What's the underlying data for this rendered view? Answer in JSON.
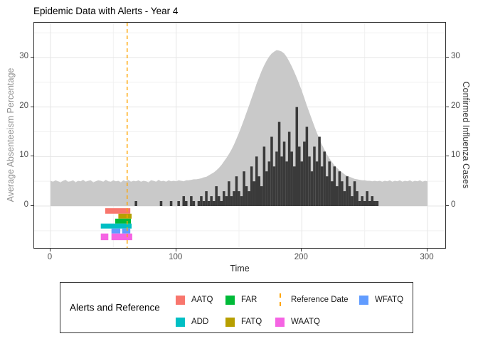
{
  "title": "Epidemic Data with Alerts - Year 4",
  "axes": {
    "x_title": "Time",
    "y_left_title": "Average Absenteeism Percentage",
    "y_right_title": "Confirmed Influenza Cases"
  },
  "legend": {
    "title": "Alerts and Reference",
    "items": [
      {
        "label": "AATQ",
        "key": "square",
        "color": "#F8766D",
        "col": 0,
        "row": 0
      },
      {
        "label": "ADD",
        "key": "square",
        "color": "#00BFC4",
        "col": 0,
        "row": 1
      },
      {
        "label": "FAR",
        "key": "square",
        "color": "#00BA38",
        "col": 1,
        "row": 0
      },
      {
        "label": "FATQ",
        "key": "square",
        "color": "#B79F00",
        "col": 1,
        "row": 1
      },
      {
        "label": "Reference Date",
        "key": "dashed-line",
        "color": "#FFA500",
        "col": 2,
        "row": 0
      },
      {
        "label": "WAATQ",
        "key": "square",
        "color": "#F564E3",
        "col": 2,
        "row": 1
      },
      {
        "label": "WFATQ",
        "key": "square",
        "color": "#619CFF",
        "col": 3,
        "row": 0
      }
    ]
  },
  "chart_data": {
    "type": "combo-area-bar-tile",
    "title": "Epidemic Data with Alerts - Year 4",
    "xlabel": "Time",
    "ylabel_left": "Average Absenteeism Percentage",
    "ylabel_right": "Confirmed Influenza Cases",
    "x_range": [
      0,
      300
    ],
    "y_range_shown": [
      -8.7,
      37
    ],
    "x_ticks": [
      0,
      100,
      200,
      300
    ],
    "x_minor": [
      50,
      150,
      250
    ],
    "y_ticks": [
      0,
      10,
      20,
      30
    ],
    "y_minor": [
      -5,
      5,
      15,
      25,
      35
    ],
    "grid": "on",
    "legend_position": "bottom",
    "x_step": 2,
    "absenteeism": {
      "name": "Average Absenteeism Percentage",
      "style": "area",
      "color": "#C9C9C9",
      "baseline": 5,
      "peak_x": 181,
      "peak_value": 31.5,
      "values": [
        5.1,
        4.9,
        5.2,
        5.0,
        4.8,
        5.1,
        5.3,
        4.9,
        5.0,
        5.2,
        4.8,
        5.1,
        5.0,
        5.3,
        4.9,
        5.1,
        5.2,
        4.8,
        5.0,
        5.2,
        5.1,
        4.9,
        5.3,
        5.0,
        4.9,
        5.2,
        5.0,
        5.1,
        4.8,
        5.2,
        5.0,
        5.3,
        4.9,
        5.1,
        5.0,
        5.2,
        4.9,
        5.1,
        5.0,
        4.8,
        5.2,
        5.1,
        4.9,
        5.3,
        5.0,
        5.1,
        4.9,
        5.2,
        5.0,
        5.1,
        5.0,
        5.2,
        5.1,
        5.0,
        5.2,
        5.2,
        5.3,
        5.4,
        5.4,
        5.5,
        5.6,
        5.8,
        5.9,
        6.2,
        6.5,
        6.8,
        7.2,
        7.7,
        8.3,
        9.0,
        9.7,
        10.5,
        11.4,
        12.4,
        13.6,
        14.8,
        16.1,
        17.5,
        18.9,
        20.3,
        21.8,
        23.2,
        24.7,
        26.0,
        27.3,
        28.4,
        29.4,
        30.2,
        30.8,
        31.2,
        31.5,
        31.4,
        31.2,
        30.8,
        30.1,
        29.2,
        28.2,
        27.1,
        25.9,
        24.6,
        23.3,
        21.8,
        20.3,
        18.9,
        17.5,
        16.1,
        14.8,
        13.5,
        12.4,
        11.4,
        10.4,
        9.6,
        8.9,
        8.2,
        7.7,
        7.2,
        6.8,
        6.4,
        6.1,
        5.9,
        5.7,
        5.5,
        5.4,
        5.3,
        5.2,
        5.2,
        5.1,
        5.1,
        5.0,
        5.1,
        5.0,
        5.1,
        4.9,
        5.1,
        5.0,
        5.2,
        4.9,
        5.1,
        5.0,
        5.2,
        4.9,
        5.1,
        5.0,
        5.2,
        4.9,
        5.1,
        5.0,
        5.2,
        4.9,
        5.1,
        5.0
      ]
    },
    "influenza": {
      "name": "Confirmed Influenza Cases",
      "style": "bar",
      "color": "#3A3A3A",
      "max_value": 20,
      "values": [
        0,
        0,
        0,
        0,
        0,
        0,
        0,
        0,
        0,
        0,
        0,
        0,
        0,
        0,
        0,
        0,
        0,
        0,
        0,
        0,
        0,
        0,
        0,
        0,
        0,
        0,
        0,
        0,
        0,
        0,
        0,
        0,
        0,
        0,
        1,
        0,
        0,
        0,
        0,
        0,
        0,
        0,
        0,
        0,
        1,
        0,
        0,
        0,
        1,
        0,
        0,
        1,
        0,
        2,
        1,
        0,
        2,
        1,
        0,
        1,
        2,
        1,
        3,
        1,
        2,
        1,
        4,
        2,
        1,
        3,
        2,
        5,
        2,
        3,
        6,
        3,
        2,
        7,
        4,
        3,
        8,
        5,
        10,
        6,
        4,
        12,
        7,
        9,
        14,
        8,
        11,
        17,
        10,
        13,
        9,
        15,
        11,
        8,
        20,
        12,
        9,
        13,
        16,
        10,
        7,
        12,
        9,
        14,
        8,
        11,
        6,
        9,
        5,
        8,
        4,
        7,
        5,
        3,
        6,
        4,
        2,
        5,
        3,
        1,
        2,
        1,
        3,
        1,
        2,
        1,
        1,
        0,
        0,
        0,
        0,
        0,
        0,
        0,
        0,
        0,
        0,
        0,
        0,
        0,
        0,
        0,
        0,
        0,
        0,
        0,
        0
      ]
    },
    "reference_date": {
      "x": 61,
      "color": "#FFA500",
      "style": "dashed-vline"
    },
    "alert_row_bounds": [
      [
        -0.45,
        -1.55
      ],
      [
        -1.55,
        -2.55
      ],
      [
        -2.55,
        -3.55
      ],
      [
        -3.55,
        -4.55
      ],
      [
        -4.55,
        -5.55
      ],
      [
        -5.55,
        -6.9
      ]
    ],
    "alerts": [
      {
        "name": "AATQ",
        "color": "#F8766D",
        "row": 0,
        "segments": [
          [
            43.5,
            63.5
          ]
        ]
      },
      {
        "name": "FATQ",
        "color": "#B79F00",
        "row": 1,
        "segments": [
          [
            54,
            64.5
          ]
        ]
      },
      {
        "name": "FAR",
        "color": "#00BA38",
        "row": 2,
        "segments": [
          [
            51.5,
            64
          ]
        ]
      },
      {
        "name": "ADD",
        "color": "#00BFC4",
        "row": 3,
        "segments": [
          [
            40,
            64.5
          ]
        ]
      },
      {
        "name": "WFATQ",
        "color": "#619CFF",
        "row": 4,
        "segments": [
          [
            48.5,
            55.5
          ],
          [
            57,
            63.5
          ]
        ]
      },
      {
        "name": "WAATQ",
        "color": "#F564E3",
        "row": 5,
        "segments": [
          [
            40,
            46
          ],
          [
            48.5,
            65
          ]
        ]
      }
    ],
    "grid_colors": {
      "major": "#e5e5e5",
      "minor": "#f1f1f1"
    }
  }
}
